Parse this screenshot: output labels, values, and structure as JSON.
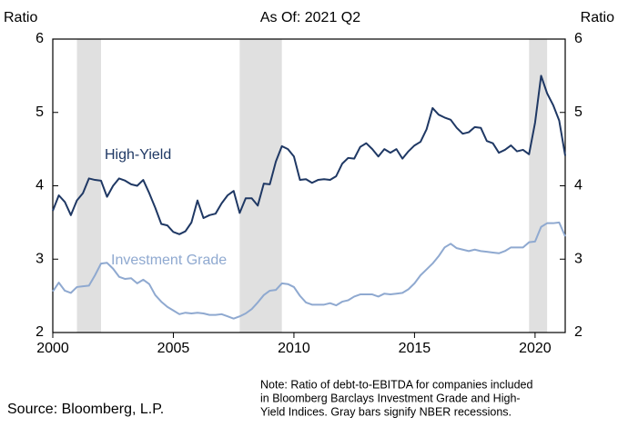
{
  "chart_data": {
    "type": "line",
    "title": "As Of: 2021 Q2",
    "ylabel": "Ratio",
    "y2label": "Ratio",
    "source": "Source: Bloomberg, L.P.",
    "note": [
      "Note: Ratio of debt-to-EBITDA for companies included",
      "in Bloomberg Barclays Investment Grade and High-",
      "Yield Indices. Gray bars signify NBER recessions."
    ],
    "xlim": [
      2000,
      2021.25
    ],
    "xticks": [
      2000,
      2005,
      2010,
      2015,
      2020
    ],
    "ylim": [
      2,
      6
    ],
    "yticks": [
      2,
      3,
      4,
      5,
      6
    ],
    "y2lim": [
      2,
      6
    ],
    "y2ticks": [
      2,
      3,
      4,
      5,
      6
    ],
    "grid": false,
    "recessions": [
      [
        2001.0,
        2002.0
      ],
      [
        2007.75,
        2009.5
      ],
      [
        2019.75,
        2020.5
      ]
    ],
    "recession_color": "#e0e0e0",
    "x": [
      2000.0,
      2000.25,
      2000.5,
      2000.75,
      2001.0,
      2001.25,
      2001.5,
      2001.75,
      2002.0,
      2002.25,
      2002.5,
      2002.75,
      2003.0,
      2003.25,
      2003.5,
      2003.75,
      2004.0,
      2004.25,
      2004.5,
      2004.75,
      2005.0,
      2005.25,
      2005.5,
      2005.75,
      2006.0,
      2006.25,
      2006.5,
      2006.75,
      2007.0,
      2007.25,
      2007.5,
      2007.75,
      2008.0,
      2008.25,
      2008.5,
      2008.75,
      2009.0,
      2009.25,
      2009.5,
      2009.75,
      2010.0,
      2010.25,
      2010.5,
      2010.75,
      2011.0,
      2011.25,
      2011.5,
      2011.75,
      2012.0,
      2012.25,
      2012.5,
      2012.75,
      2013.0,
      2013.25,
      2013.5,
      2013.75,
      2014.0,
      2014.25,
      2014.5,
      2014.75,
      2015.0,
      2015.25,
      2015.5,
      2015.75,
      2016.0,
      2016.25,
      2016.5,
      2016.75,
      2017.0,
      2017.25,
      2017.5,
      2017.75,
      2018.0,
      2018.25,
      2018.5,
      2018.75,
      2019.0,
      2019.25,
      2019.5,
      2019.75,
      2020.0,
      2020.25,
      2020.5,
      2020.75,
      2021.0,
      2021.25
    ],
    "series": [
      {
        "name": "High-Yield",
        "color": "#1f3864",
        "values": [
          3.66,
          3.87,
          3.78,
          3.6,
          3.8,
          3.9,
          4.1,
          4.08,
          4.07,
          3.85,
          4.0,
          4.1,
          4.07,
          4.02,
          4.0,
          4.08,
          3.9,
          3.7,
          3.48,
          3.46,
          3.37,
          3.34,
          3.38,
          3.5,
          3.8,
          3.56,
          3.6,
          3.62,
          3.76,
          3.87,
          3.93,
          3.63,
          3.83,
          3.83,
          3.73,
          4.03,
          4.02,
          4.33,
          4.54,
          4.5,
          4.4,
          4.08,
          4.09,
          4.04,
          4.08,
          4.09,
          4.08,
          4.13,
          4.3,
          4.38,
          4.37,
          4.53,
          4.58,
          4.5,
          4.4,
          4.5,
          4.45,
          4.5,
          4.37,
          4.47,
          4.55,
          4.6,
          4.77,
          5.06,
          4.97,
          4.93,
          4.9,
          4.79,
          4.71,
          4.73,
          4.8,
          4.79,
          4.61,
          4.58,
          4.45,
          4.49,
          4.55,
          4.47,
          4.49,
          4.43,
          4.86,
          5.5,
          5.26,
          5.1,
          4.89,
          4.41
        ]
      },
      {
        "name": "Investment Grade",
        "color": "#8fa9d0",
        "values": [
          2.56,
          2.68,
          2.57,
          2.54,
          2.62,
          2.63,
          2.64,
          2.78,
          2.94,
          2.95,
          2.87,
          2.76,
          2.73,
          2.74,
          2.67,
          2.72,
          2.66,
          2.51,
          2.42,
          2.35,
          2.3,
          2.25,
          2.27,
          2.26,
          2.27,
          2.26,
          2.24,
          2.24,
          2.25,
          2.22,
          2.19,
          2.22,
          2.26,
          2.32,
          2.41,
          2.51,
          2.57,
          2.58,
          2.67,
          2.66,
          2.62,
          2.5,
          2.41,
          2.38,
          2.38,
          2.38,
          2.4,
          2.37,
          2.42,
          2.44,
          2.49,
          2.52,
          2.52,
          2.52,
          2.49,
          2.53,
          2.52,
          2.53,
          2.54,
          2.59,
          2.67,
          2.78,
          2.86,
          2.94,
          3.04,
          3.16,
          3.21,
          3.15,
          3.13,
          3.11,
          3.13,
          3.11,
          3.1,
          3.09,
          3.08,
          3.11,
          3.16,
          3.16,
          3.16,
          3.23,
          3.24,
          3.44,
          3.49,
          3.49,
          3.5,
          3.31
        ]
      }
    ]
  }
}
